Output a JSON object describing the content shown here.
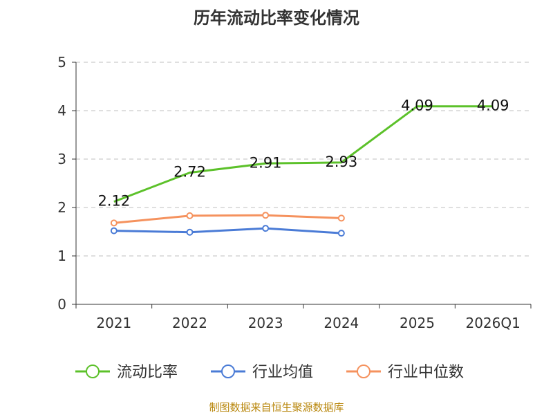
{
  "chart_data": {
    "type": "line",
    "title": "历年流动比率变化情况",
    "categories": [
      "2021",
      "2022",
      "2023",
      "2024",
      "2025",
      "2026Q1"
    ],
    "ylim": [
      0,
      5
    ],
    "yticks": [
      0,
      1,
      2,
      3,
      4,
      5
    ],
    "grid": true,
    "legend_position": "bottom",
    "series": [
      {
        "name": "流动比率",
        "color": "#5cc12a",
        "values": [
          2.12,
          2.72,
          2.91,
          2.93,
          4.09,
          4.09
        ],
        "labels": [
          "2.12",
          "2.72",
          "2.91",
          "2.93",
          "4.09",
          "4.09"
        ],
        "show_labels": true,
        "show_markers": false
      },
      {
        "name": "行业均值",
        "color": "#4a7bd6",
        "values": [
          1.52,
          1.49,
          1.57,
          1.47,
          null,
          null
        ],
        "show_labels": false,
        "show_markers": true
      },
      {
        "name": "行业中位数",
        "color": "#f5925e",
        "values": [
          1.68,
          1.83,
          1.84,
          1.78,
          null,
          null
        ],
        "show_labels": false,
        "show_markers": true
      }
    ]
  },
  "footer": {
    "source": "制图数据来自恒生聚源数据库"
  }
}
